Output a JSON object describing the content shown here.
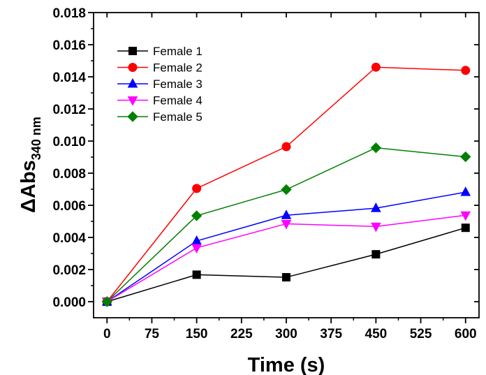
{
  "chart_data": {
    "type": "line",
    "xlabel": "Time (s)",
    "ylabel": {
      "prefix": "ΔAbs",
      "subscript": "340 nm"
    },
    "xlim": [
      -22.5,
      622.5
    ],
    "ylim": [
      -0.001,
      0.018
    ],
    "xticks": [
      "0",
      "75",
      "150",
      "225",
      "300",
      "375",
      "450",
      "525",
      "600"
    ],
    "yticks": [
      "0.000",
      "0.002",
      "0.004",
      "0.006",
      "0.008",
      "0.010",
      "0.012",
      "0.014",
      "0.016",
      "0.018"
    ],
    "x": [
      0,
      150,
      300,
      450,
      600
    ],
    "legend_position": "top-left",
    "grid": false,
    "series": [
      {
        "name": "Female 1",
        "color": "#000000",
        "marker": "square",
        "values": [
          0.0,
          0.00168,
          0.00152,
          0.00295,
          0.0046
        ]
      },
      {
        "name": "Female 2",
        "color": "#ff0000",
        "marker": "circle",
        "values": [
          0.0,
          0.00705,
          0.00965,
          0.0146,
          0.0144
        ]
      },
      {
        "name": "Female 3",
        "color": "#0000ff",
        "marker": "triangle-up",
        "values": [
          0.0,
          0.00378,
          0.00538,
          0.00582,
          0.00682
        ]
      },
      {
        "name": "Female 4",
        "color": "#ff00ff",
        "marker": "triangle-down",
        "values": [
          0.0,
          0.00335,
          0.00485,
          0.00468,
          0.00538
        ]
      },
      {
        "name": "Female 5",
        "color": "#008000",
        "marker": "diamond",
        "values": [
          0.0,
          0.00535,
          0.00698,
          0.00958,
          0.00902
        ]
      }
    ]
  }
}
